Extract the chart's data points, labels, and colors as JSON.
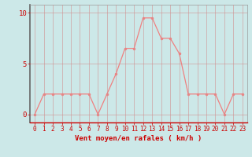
{
  "x": [
    0,
    1,
    2,
    3,
    4,
    5,
    6,
    7,
    8,
    9,
    10,
    11,
    12,
    13,
    14,
    15,
    16,
    17,
    18,
    19,
    20,
    21,
    22,
    23
  ],
  "y": [
    0.0,
    2.0,
    2.0,
    2.0,
    2.0,
    2.0,
    2.0,
    0.0,
    2.0,
    4.0,
    6.5,
    6.5,
    9.5,
    9.5,
    7.5,
    7.5,
    6.0,
    2.0,
    2.0,
    2.0,
    2.0,
    0.0,
    2.0,
    2.0
  ],
  "line_color": "#f08080",
  "marker_color": "#f08080",
  "bg_color": "#cce8e8",
  "grid_color": "#d09090",
  "xlabel": "Vent moyen/en rafales ( km/h )",
  "xlim": [
    -0.5,
    23.5
  ],
  "ylim": [
    -0.8,
    10.8
  ],
  "yticks": [
    0,
    5,
    10
  ],
  "xticks": [
    0,
    1,
    2,
    3,
    4,
    5,
    6,
    7,
    8,
    9,
    10,
    11,
    12,
    13,
    14,
    15,
    16,
    17,
    18,
    19,
    20,
    21,
    22,
    23
  ],
  "label_color": "#cc0000",
  "spine_color": "#999999",
  "dark_spine_color": "#666666"
}
